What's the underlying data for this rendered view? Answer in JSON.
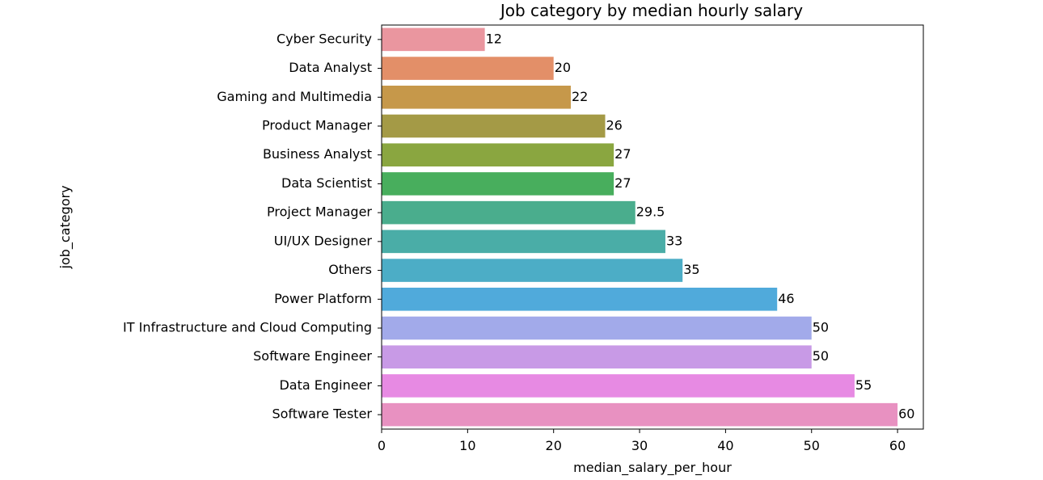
{
  "chart_data": {
    "type": "bar",
    "orientation": "horizontal",
    "title": "Job category by median hourly salary",
    "xlabel": "median_salary_per_hour",
    "ylabel": "job_category",
    "xlim": [
      0,
      63
    ],
    "xticks": [
      0,
      10,
      20,
      30,
      40,
      50,
      60
    ],
    "grid": false,
    "categories": [
      "Cyber Security",
      "Data Analyst",
      "Gaming and Multimedia",
      "Product Manager",
      "Business Analyst",
      "Data Scientist",
      "Project Manager",
      "UI/UX Designer",
      "Others",
      "Power Platform",
      "IT Infrastructure and Cloud Computing",
      "Software Engineer",
      "Data Engineer",
      "Software Tester"
    ],
    "values": [
      12,
      20,
      22,
      26,
      27,
      27,
      29.5,
      33,
      35,
      46,
      50,
      50,
      55,
      60
    ],
    "data_labels": [
      "12",
      "20",
      "22",
      "26",
      "27",
      "27",
      "29.5",
      "33",
      "35",
      "46",
      "50",
      "50",
      "55",
      "60"
    ],
    "colors": [
      "#ea969f",
      "#e38f68",
      "#c6984a",
      "#a49a46",
      "#8aa640",
      "#48ae5d",
      "#4aad8d",
      "#4aada7",
      "#4cadc6",
      "#50aadb",
      "#a2aaea",
      "#c89ae6",
      "#e78ae3",
      "#e891c1"
    ]
  }
}
